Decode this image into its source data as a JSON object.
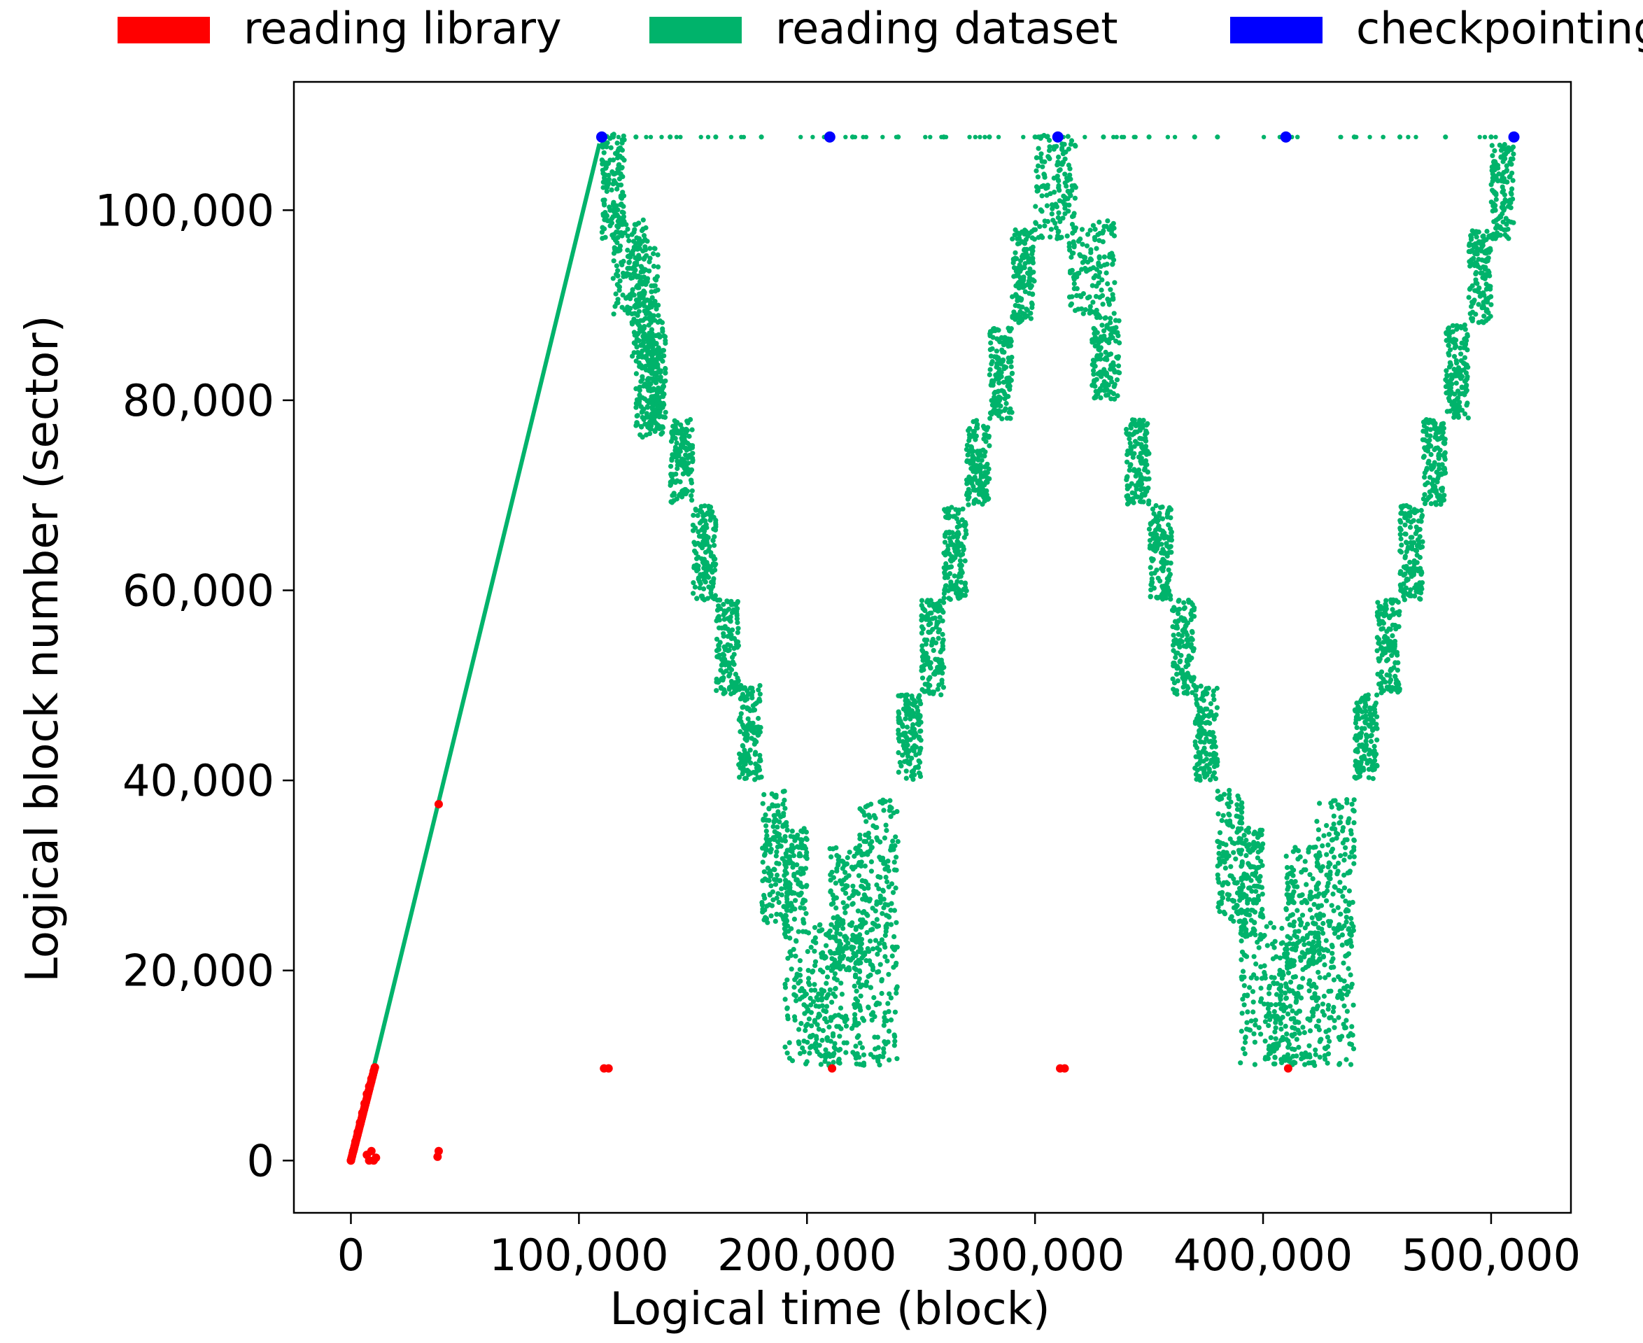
{
  "chart_data": {
    "type": "scatter",
    "title": "",
    "xlabel": "Logical time (block)",
    "ylabel": "Logical block number (sector)",
    "xlim": [
      -25000,
      535000
    ],
    "ylim": [
      -5500,
      113500
    ],
    "x_ticks": [
      0,
      100000,
      200000,
      300000,
      400000,
      500000
    ],
    "x_tick_labels": [
      "0",
      "100,000",
      "200,000",
      "300,000",
      "400,000",
      "500,000"
    ],
    "y_ticks": [
      0,
      20000,
      40000,
      60000,
      80000,
      100000
    ],
    "y_tick_labels": [
      "0",
      "20,000",
      "40,000",
      "60,000",
      "80,000",
      "100,000"
    ],
    "grid": false,
    "legend": {
      "placement": "top, outside plot, horizontal"
    },
    "series": [
      {
        "name": "reading library",
        "color": "#ff0000",
        "points": [
          [
            0,
            0
          ],
          [
            1000,
            1000
          ],
          [
            2000,
            2000
          ],
          [
            3000,
            3000
          ],
          [
            4000,
            4000
          ],
          [
            5000,
            5000
          ],
          [
            6000,
            6000
          ],
          [
            7000,
            7000
          ],
          [
            8000,
            7800
          ],
          [
            9000,
            8600
          ],
          [
            10000,
            9400
          ],
          [
            10500,
            9800
          ],
          [
            7000,
            600
          ],
          [
            8000,
            0
          ],
          [
            9000,
            1000
          ],
          [
            10000,
            0
          ],
          [
            11000,
            300
          ],
          [
            38000,
            400
          ],
          [
            38500,
            1000
          ],
          [
            38500,
            37500
          ],
          [
            111000,
            9700
          ],
          [
            113000,
            9700
          ],
          [
            211000,
            9700
          ],
          [
            311000,
            9700
          ],
          [
            313000,
            9700
          ],
          [
            411000,
            9700
          ]
        ]
      },
      {
        "name": "reading dataset",
        "color": "#00b36b",
        "line": [
          [
            10000,
            9800
          ],
          [
            109000,
            107000
          ]
        ],
        "points": [
          [
            115000,
            107700
          ],
          [
            125000,
            107700
          ],
          [
            140000,
            107700
          ],
          [
            160000,
            107700
          ],
          [
            180000,
            107700
          ],
          [
            220000,
            107700
          ],
          [
            240000,
            107700
          ],
          [
            260000,
            107700
          ],
          [
            280000,
            107700
          ],
          [
            300000,
            107700
          ],
          [
            330000,
            107700
          ],
          [
            350000,
            107700
          ],
          [
            370000,
            107700
          ],
          [
            380000,
            107700
          ],
          [
            440000,
            107700
          ],
          [
            460000,
            107700
          ],
          [
            480000,
            107700
          ],
          [
            500000,
            107700
          ]
        ],
        "bands": [
          [
            110000,
            120000,
            97000,
            108000
          ],
          [
            115000,
            130000,
            89000,
            99000
          ],
          [
            123000,
            135000,
            84000,
            96000
          ],
          [
            125000,
            137000,
            76000,
            89000
          ],
          [
            130000,
            138000,
            77000,
            87000
          ],
          [
            140000,
            150000,
            69000,
            78000
          ],
          [
            150000,
            160000,
            59000,
            69000
          ],
          [
            160000,
            170000,
            49000,
            59000
          ],
          [
            170000,
            180000,
            40000,
            50000
          ],
          [
            180000,
            191000,
            25000,
            39000
          ],
          [
            190000,
            200000,
            23000,
            35000
          ],
          [
            190000,
            215000,
            10000,
            23000
          ],
          [
            200000,
            225000,
            10000,
            25000
          ],
          [
            210000,
            225000,
            20000,
            33000
          ],
          [
            220000,
            240000,
            10000,
            25000
          ],
          [
            223000,
            240000,
            24000,
            38000
          ],
          [
            240000,
            250000,
            40000,
            49000
          ],
          [
            250000,
            260000,
            49000,
            59000
          ],
          [
            260000,
            270000,
            59000,
            69000
          ],
          [
            270000,
            280000,
            69000,
            78000
          ],
          [
            280000,
            290000,
            78000,
            88000
          ],
          [
            290000,
            300000,
            88000,
            98000
          ],
          [
            300000,
            318000,
            97000,
            108000
          ],
          [
            315000,
            335000,
            89000,
            99000
          ],
          [
            325000,
            337000,
            80000,
            89000
          ],
          [
            340000,
            350000,
            69000,
            78000
          ],
          [
            350000,
            360000,
            59000,
            69000
          ],
          [
            360000,
            370000,
            49000,
            59000
          ],
          [
            370000,
            380000,
            40000,
            50000
          ],
          [
            380000,
            391000,
            25000,
            39000
          ],
          [
            390000,
            400000,
            23000,
            35000
          ],
          [
            390000,
            415000,
            10000,
            23000
          ],
          [
            400000,
            425000,
            10000,
            25000
          ],
          [
            410000,
            425000,
            20000,
            33000
          ],
          [
            420000,
            440000,
            10000,
            25000
          ],
          [
            423000,
            440000,
            24000,
            38000
          ],
          [
            440000,
            450000,
            40000,
            49000
          ],
          [
            450000,
            460000,
            49000,
            59000
          ],
          [
            460000,
            470000,
            59000,
            69000
          ],
          [
            470000,
            480000,
            69000,
            78000
          ],
          [
            480000,
            490000,
            78000,
            88000
          ],
          [
            490000,
            500000,
            88000,
            98000
          ],
          [
            500000,
            510000,
            97000,
            107000
          ]
        ]
      },
      {
        "name": "checkpointing",
        "color": "#0000ff",
        "points": [
          [
            110000,
            107700
          ],
          [
            210000,
            107700
          ],
          [
            310000,
            107700
          ],
          [
            410000,
            107700
          ],
          [
            510000,
            107700
          ]
        ]
      }
    ]
  }
}
